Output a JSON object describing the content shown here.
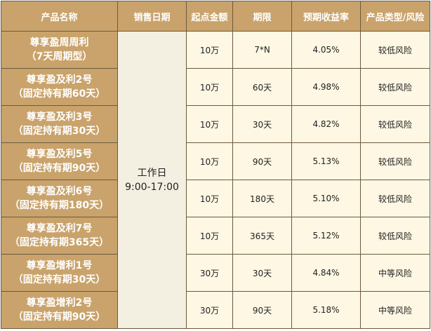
{
  "headers": [
    "产品名称",
    "销售日期",
    "起点金额",
    "期限",
    "预期收益率",
    "产品类型/风险"
  ],
  "sale_time": {
    "line1": "工作日",
    "line2": "9:00-17:00"
  },
  "rows": [
    {
      "name1": "尊享盈周周利",
      "name2": "（7天周期型）",
      "amount": "10万",
      "term": "7*N",
      "rate": "4.05%",
      "risk": "较低风险"
    },
    {
      "name1": "尊享盈及利2号",
      "name2": "（固定持有期60天）",
      "amount": "10万",
      "term": "60天",
      "rate": "4.98%",
      "risk": "较低风险"
    },
    {
      "name1": "尊享盈及利3号",
      "name2": "（固定持有期30天）",
      "amount": "10万",
      "term": "30天",
      "rate": "4.82%",
      "risk": "较低风险"
    },
    {
      "name1": "尊享盈及利5号",
      "name2": "（固定持有期90天）",
      "amount": "10万",
      "term": "90天",
      "rate": "5.13%",
      "risk": "较低风险"
    },
    {
      "name1": "尊享盈及利6号",
      "name2": "（固定持有期180天）",
      "amount": "10万",
      "term": "180天",
      "rate": "5.10%",
      "risk": "较低风险"
    },
    {
      "name1": "尊享盈及利7号",
      "name2": "（固定持有期365天）",
      "amount": "10万",
      "term": "365天",
      "rate": "5.12%",
      "risk": "较低风险"
    },
    {
      "name1": "尊享盈增利1号",
      "name2": "（固定持有期30天）",
      "amount": "30万",
      "term": "30天",
      "rate": "4.84%",
      "risk": "中等风险"
    },
    {
      "name1": "尊享盈增利2号",
      "name2": "（固定持有期90天）",
      "amount": "30万",
      "term": "90天",
      "rate": "5.18%",
      "risk": "中等风险"
    }
  ]
}
